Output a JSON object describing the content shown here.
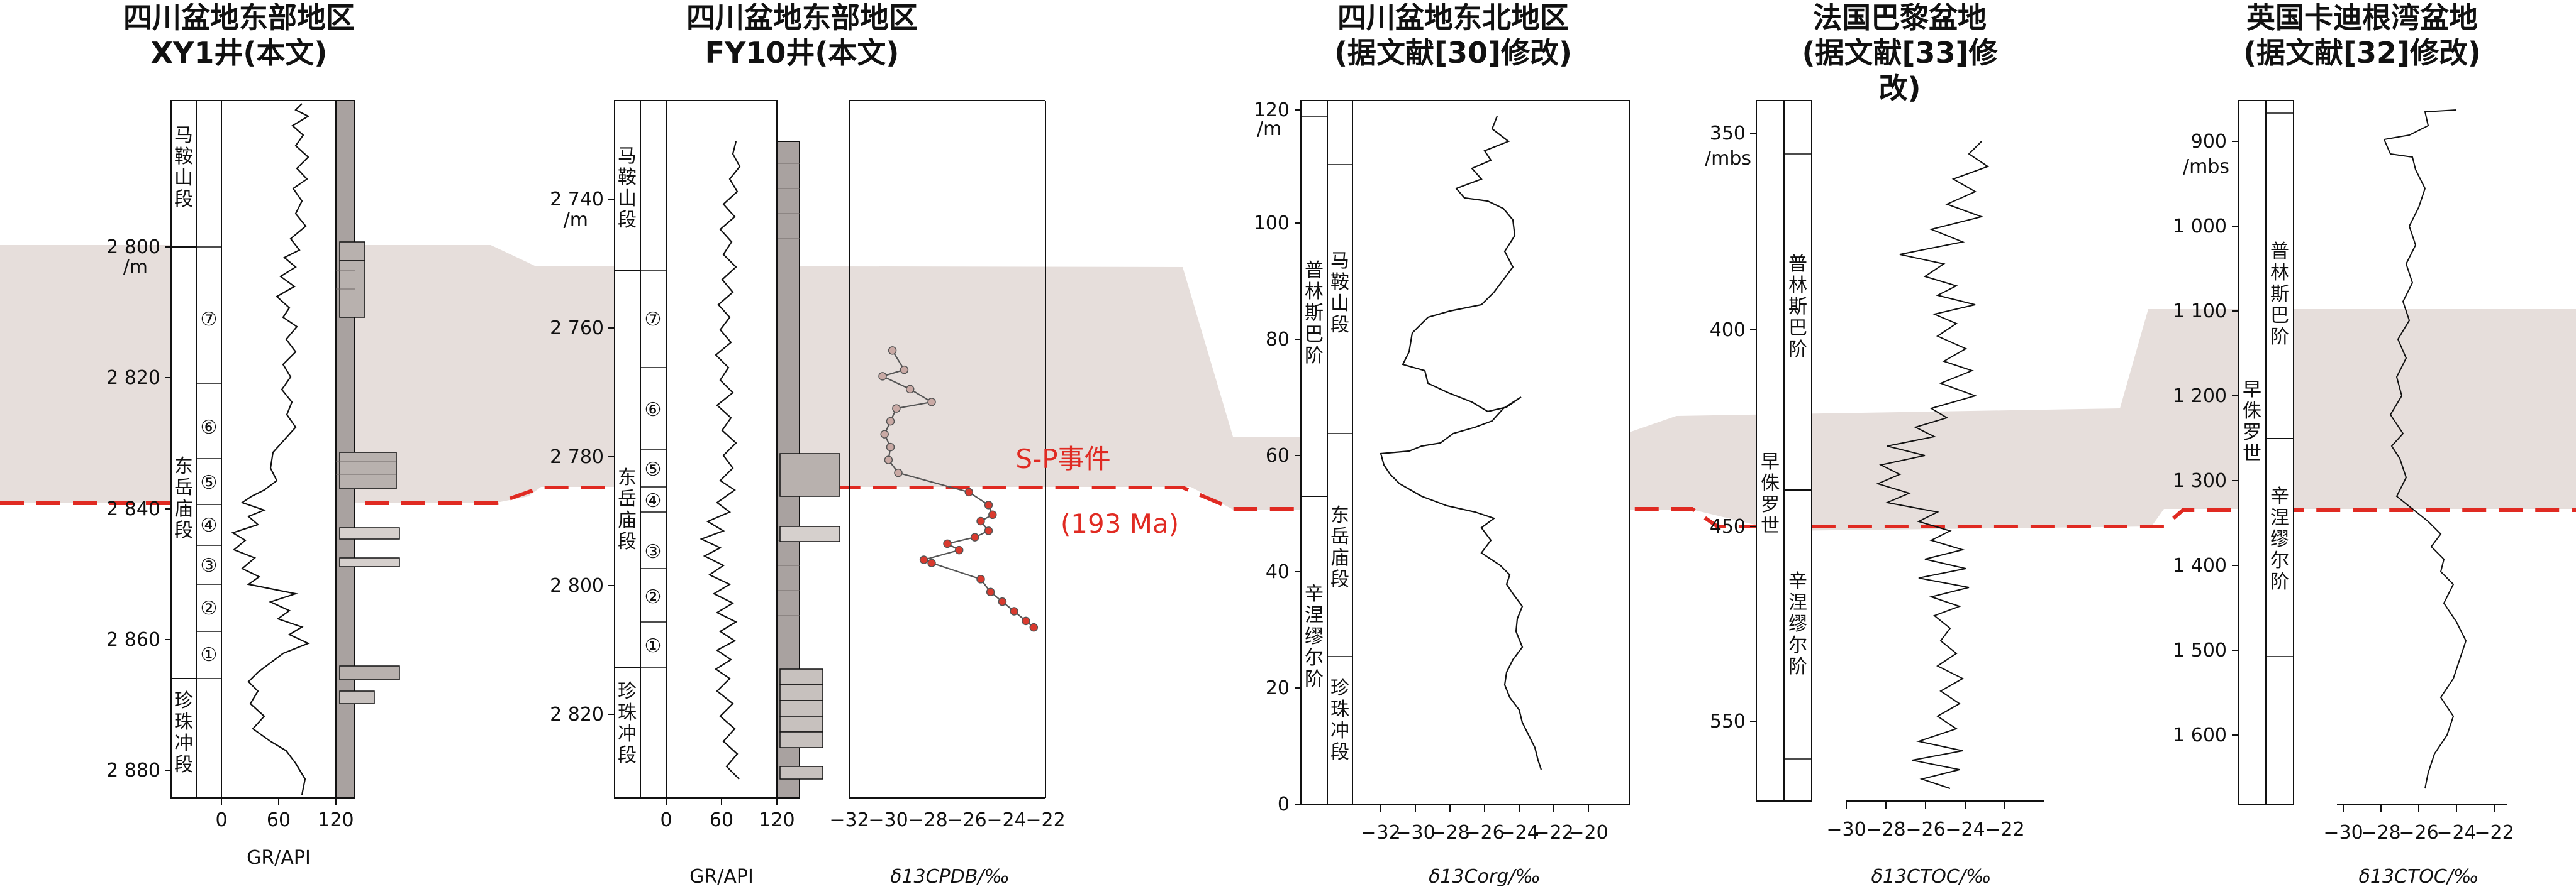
{
  "titles": [
    {
      "line1": "四川盆地东部地区",
      "line2": "XY1井(本文)"
    },
    {
      "line1": "四川盆地东部地区",
      "line2": "FY10井(本文)"
    },
    {
      "line1": "四川盆地东北地区",
      "line2": "(据文献[30]修改)"
    },
    {
      "line1": "法国巴黎盆地",
      "line2": "(据文献[33]修改)"
    },
    {
      "line1": "英国卡迪根湾盆地",
      "line2": "(据文献[32]修改)"
    }
  ],
  "event": {
    "label": "S-P事件",
    "age": "(193 Ma)",
    "color": "#e02a22"
  },
  "colors": {
    "shade": "#e6dedb",
    "curve": "#111111",
    "marker": "#d93a2e",
    "litho_gray": "#a9a2a0"
  },
  "xy1": {
    "depth_ticks": [
      "2 800",
      "2 820",
      "2 840",
      "2 860",
      "2 880"
    ],
    "depth_unit": "/m",
    "units": [
      {
        "text": "马鞍山段"
      },
      {
        "text": "东岳庙段"
      },
      {
        "text": "珍珠冲段"
      }
    ],
    "sub_members": [
      "⑦",
      "⑥",
      "⑤",
      "④",
      "③",
      "②",
      "①"
    ],
    "gr_ticks": [
      "0",
      "60",
      "120"
    ],
    "gr_label": "GR/API"
  },
  "fy10": {
    "depth_ticks": [
      "2 740",
      "2 760",
      "2 780",
      "2 800",
      "2 820"
    ],
    "depth_unit": "/m",
    "units": [
      {
        "text": "马鞍山段"
      },
      {
        "text": "东岳庙段"
      },
      {
        "text": "珍珠冲段"
      }
    ],
    "sub_members": [
      "⑦",
      "⑥",
      "⑤",
      "④",
      "③",
      "②",
      "①"
    ],
    "gr_ticks": [
      "0",
      "60",
      "120"
    ],
    "gr_label": "GR/API",
    "carbon_ticks": [
      "−32",
      "−30",
      "−28",
      "−26",
      "−24",
      "−22"
    ],
    "carbon_label": "δ13CPDB/‰"
  },
  "ne_sichuan": {
    "depth_ticks": [
      "0",
      "20",
      "40",
      "60",
      "80",
      "100",
      "120"
    ],
    "depth_unit": "/m",
    "stages": [
      {
        "text": "普林斯巴阶"
      },
      {
        "text": "辛涅缪尔阶"
      }
    ],
    "members": [
      {
        "text": "马鞍山段"
      },
      {
        "text": "东岳庙段"
      },
      {
        "text": "珍珠冲段"
      }
    ],
    "carbon_ticks": [
      "−32",
      "−30",
      "−28",
      "−26",
      "−24",
      "−22",
      "−20"
    ],
    "carbon_label": "δ13Corg/‰"
  },
  "paris": {
    "depth_ticks": [
      "350",
      "400",
      "450",
      "550"
    ],
    "depth_unit": "/mbs",
    "epoch": {
      "text": "早侏罗世"
    },
    "stages": [
      {
        "text": "普林斯巴阶"
      },
      {
        "text": "辛涅缪尔阶"
      }
    ],
    "carbon_ticks": [
      "−30",
      "−28",
      "−26",
      "−24",
      "−22"
    ],
    "carbon_label": "δ13CTOC/‰"
  },
  "cardigan": {
    "depth_ticks": [
      "900",
      "1 000",
      "1 100",
      "1 200",
      "1 300",
      "1 400",
      "1 500",
      "1 600"
    ],
    "depth_unit": "/mbs",
    "epoch": {
      "text": "早侏罗世"
    },
    "stages": [
      {
        "text": "普林斯巴阶"
      },
      {
        "text": "辛涅缪尔阶"
      }
    ],
    "carbon_ticks": [
      "−30",
      "−28",
      "−26",
      "−24",
      "−22"
    ],
    "carbon_label": "δ13CTOC/‰"
  },
  "fy10_carbon_points": [
    {
      "depth": 2763.5,
      "value": -29.8
    },
    {
      "depth": 2766.5,
      "value": -29.2
    },
    {
      "depth": 2767.5,
      "value": -30.3
    },
    {
      "depth": 2769.5,
      "value": -28.9
    },
    {
      "depth": 2771.5,
      "value": -27.8
    },
    {
      "depth": 2772.5,
      "value": -29.6
    },
    {
      "depth": 2774.5,
      "value": -29.9
    },
    {
      "depth": 2776.5,
      "value": -30.2
    },
    {
      "depth": 2778.5,
      "value": -29.9
    },
    {
      "depth": 2780.5,
      "value": -30.0
    },
    {
      "depth": 2782.5,
      "value": -29.5
    },
    {
      "depth": 2785.5,
      "value": -25.9
    },
    {
      "depth": 2787.5,
      "value": -24.9
    },
    {
      "depth": 2789.0,
      "value": -24.7
    },
    {
      "depth": 2790.0,
      "value": -25.3
    },
    {
      "depth": 2791.5,
      "value": -24.9
    },
    {
      "depth": 2792.5,
      "value": -25.6
    },
    {
      "depth": 2793.5,
      "value": -27.0
    },
    {
      "depth": 2794.5,
      "value": -26.4
    },
    {
      "depth": 2796.0,
      "value": -28.2
    },
    {
      "depth": 2796.5,
      "value": -27.8
    },
    {
      "depth": 2799.0,
      "value": -25.3
    },
    {
      "depth": 2801.0,
      "value": -24.8
    },
    {
      "depth": 2802.5,
      "value": -24.2
    },
    {
      "depth": 2804.0,
      "value": -23.6
    },
    {
      "depth": 2805.5,
      "value": -23.0
    },
    {
      "depth": 2806.5,
      "value": -22.6
    }
  ]
}
